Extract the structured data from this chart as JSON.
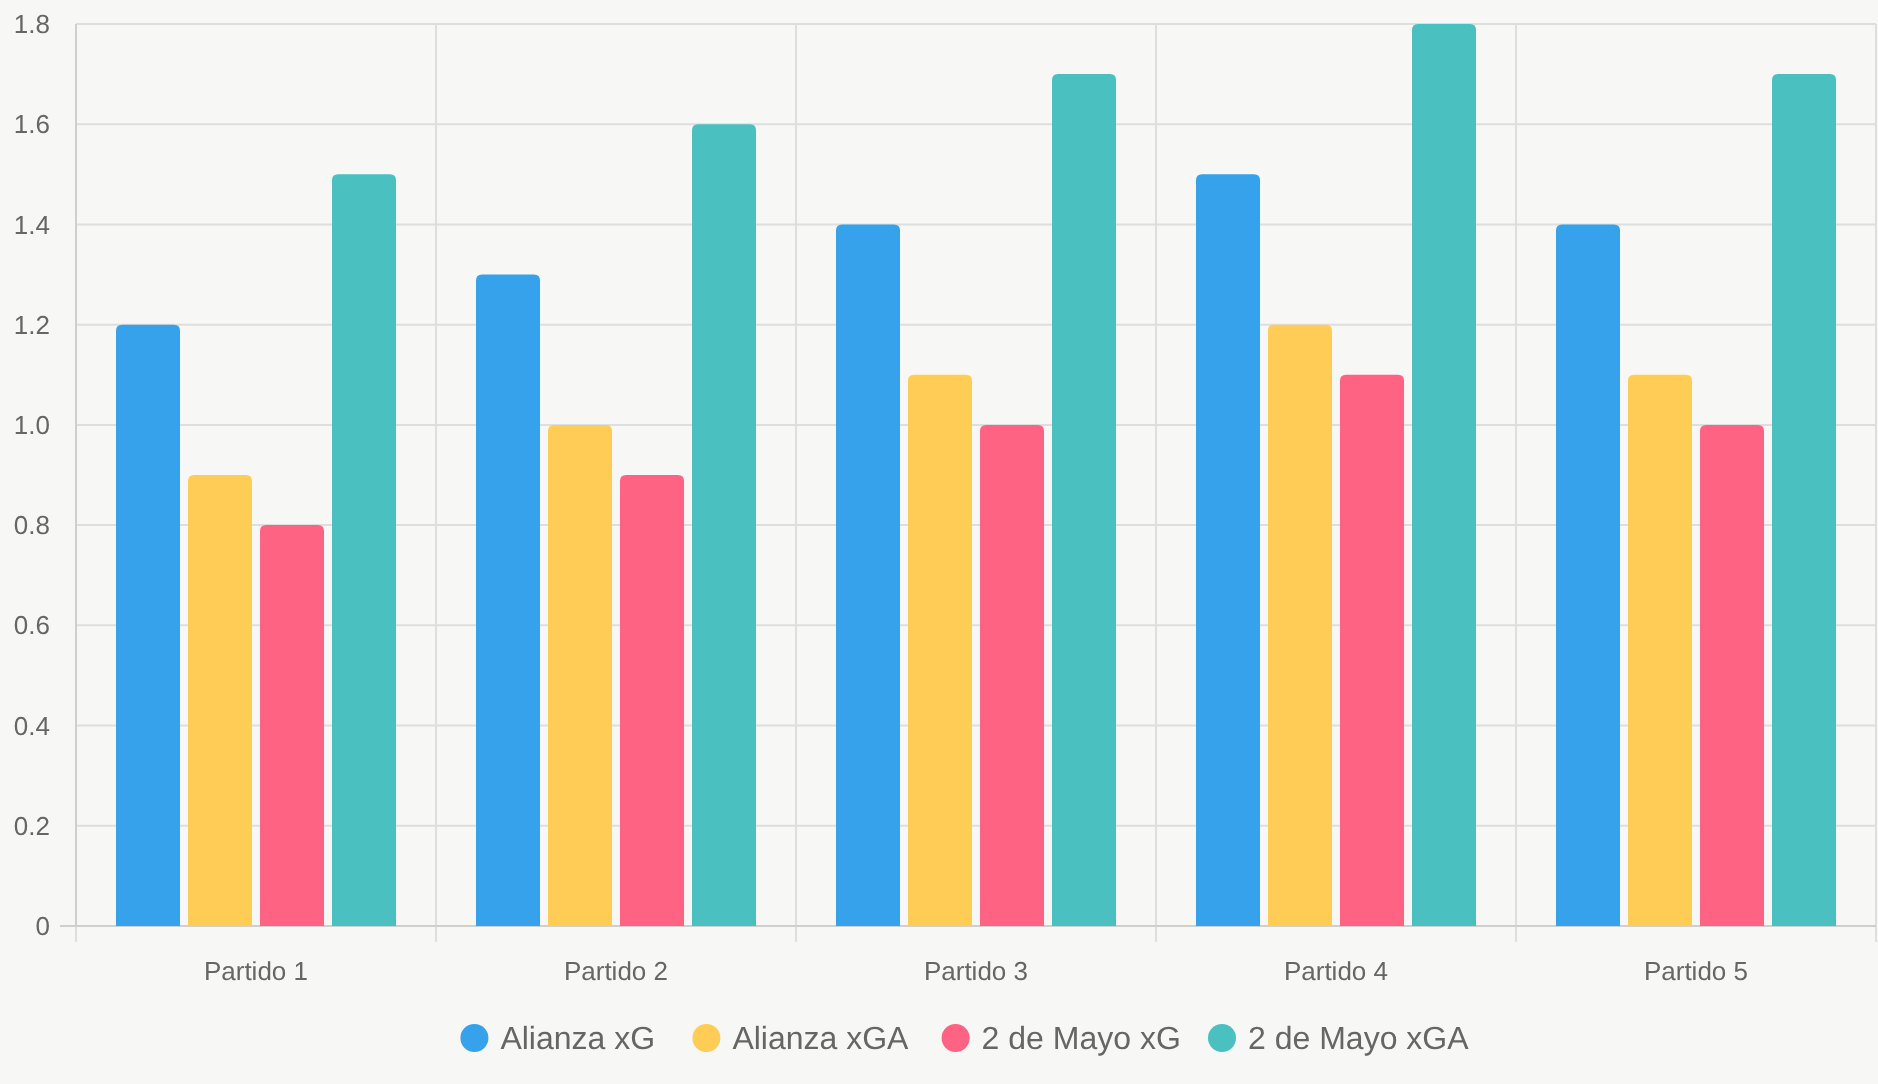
{
  "chart_data": {
    "type": "bar",
    "categories": [
      "Partido 1",
      "Partido 2",
      "Partido 3",
      "Partido 4",
      "Partido 5"
    ],
    "series": [
      {
        "name": "Alianza xG",
        "color": "#36a2eb",
        "values": [
          1.2,
          1.3,
          1.4,
          1.5,
          1.4
        ]
      },
      {
        "name": "Alianza xGA",
        "color": "#ffcd56",
        "values": [
          0.9,
          1.0,
          1.1,
          1.2,
          1.1
        ]
      },
      {
        "name": "2 de Mayo xG",
        "color": "#ff6384",
        "values": [
          0.8,
          0.9,
          1.0,
          1.1,
          1.0
        ]
      },
      {
        "name": "2 de Mayo xGA",
        "color": "#4bc0c0",
        "values": [
          1.5,
          1.6,
          1.7,
          1.8,
          1.7
        ]
      }
    ],
    "ylim": [
      0,
      1.8
    ],
    "yticks": [
      0,
      {
        "value": 0.2,
        "label": "0.2"
      },
      {
        "value": 0.4,
        "label": "0.4"
      },
      {
        "value": 0.6,
        "label": "0.6"
      },
      {
        "value": 0.8,
        "label": "0.8"
      },
      {
        "value": 1,
        "label": "1.0"
      },
      {
        "value": 1.2,
        "label": "1.2"
      },
      {
        "value": 1.4,
        "label": "1.4"
      },
      {
        "value": 1.6,
        "label": "1.6"
      },
      {
        "value": 1.8,
        "label": "1.8"
      }
    ],
    "grid": true,
    "legend": "bottom"
  }
}
